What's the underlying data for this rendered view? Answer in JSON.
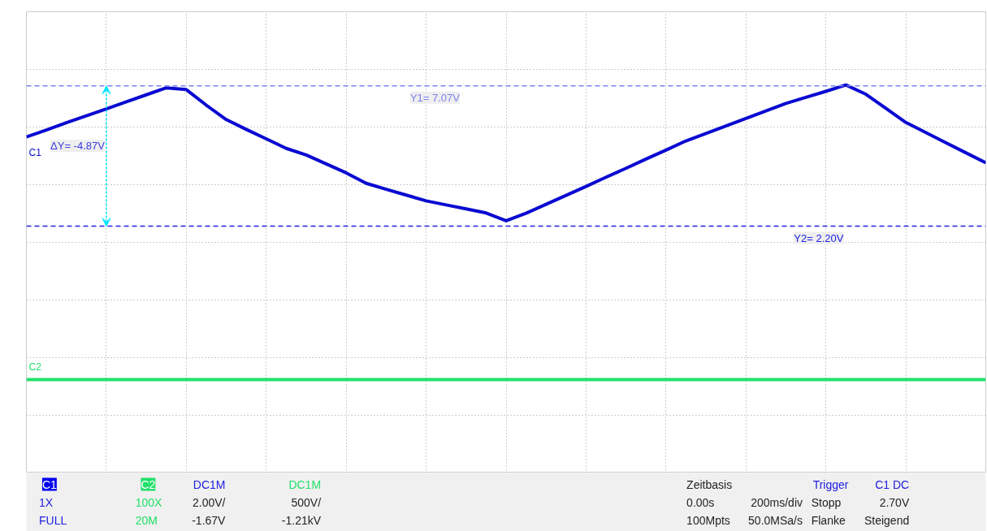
{
  "chart_data": {
    "type": "line",
    "categories": [
      null,
      null,
      null,
      null,
      null,
      null,
      null,
      null,
      null,
      null,
      null,
      null,
      null,
      null,
      null,
      null,
      null,
      null,
      null,
      null,
      null,
      null,
      null,
      null,
      null,
      null,
      null,
      null,
      null,
      null,
      null,
      null,
      null,
      null,
      null,
      null,
      null,
      null,
      null,
      null,
      null,
      null,
      null,
      null,
      null,
      null,
      null,
      null,
      null
    ],
    "series": [
      {
        "name": "C1",
        "color": "#0a0ad2",
        "values": [
          5.3,
          5.54,
          5.79,
          6.03,
          6.27,
          6.52,
          6.76,
          7.0,
          6.94,
          6.4,
          5.9,
          5.56,
          5.23,
          4.9,
          4.67,
          4.36,
          4.05,
          3.69,
          3.48,
          3.28,
          3.08,
          2.94,
          2.8,
          2.66,
          2.39,
          2.65,
          2.96,
          3.27,
          3.58,
          3.9,
          4.21,
          4.53,
          4.84,
          5.16,
          5.42,
          5.68,
          5.94,
          6.2,
          6.46,
          6.67,
          6.88,
          7.1,
          6.78,
          6.29,
          5.8,
          5.45,
          5.1,
          4.75,
          4.4
        ]
      },
      {
        "name": "C2",
        "color": "#22e06a",
        "values": [
          -3.12,
          -3.12,
          -3.12,
          -3.12,
          -3.12,
          -3.12,
          -3.12,
          -3.12,
          -3.12,
          -3.12,
          -3.12,
          -3.12,
          -3.12,
          -3.12,
          -3.12,
          -3.12,
          -3.12,
          -3.12,
          -3.12,
          -3.12,
          -3.12,
          -3.12,
          -3.12,
          -3.12,
          -3.12,
          -3.12,
          -3.12,
          -3.12,
          -3.12,
          -3.12,
          -3.12,
          -3.12,
          -3.12,
          -3.12,
          -3.12,
          -3.12,
          -3.12,
          -3.12,
          -3.12,
          -3.12,
          -3.12,
          -3.12,
          -3.12,
          -3.12,
          -3.12,
          -3.12,
          -3.12,
          -3.12,
          -3.12
        ]
      }
    ],
    "ylim": [
      -6.36,
      9.64
    ],
    "yticks": [
      {
        "value": -6.36,
        "label": null
      },
      {
        "value": -4.36,
        "label": null
      },
      {
        "value": -2.36,
        "label": null
      },
      {
        "value": -0.36,
        "label": null
      },
      {
        "value": 1.64,
        "label": null
      },
      {
        "value": 3.64,
        "label": null
      },
      {
        "value": 5.64,
        "label": null
      },
      {
        "value": 7.64,
        "label": null
      },
      {
        "value": 9.64,
        "label": null
      }
    ],
    "tick_labels": false,
    "grid": true,
    "marker": "none",
    "line_style": "solid",
    "ref_lines": [
      {
        "axis": "y",
        "value": 7.07,
        "label": "Y1= 7.07V",
        "color": "#8080f0",
        "line_style": "dashed"
      },
      {
        "axis": "y",
        "value": 2.2,
        "label": "Y2= 2.20V",
        "color": "#2020e0",
        "line_style": "dashed"
      }
    ],
    "annotations": [
      "ΔY= -4.87V",
      "C1",
      "DC1M",
      "1X",
      "2.00V/",
      "FULL",
      "-1.67V",
      "C2",
      "DC1M",
      "100X",
      "500V/",
      "20M",
      "-1.21kV",
      "Zeitbasis",
      "0.00s",
      "200ms/div",
      "100Mpts",
      "50.0MSa/s",
      "Trigger",
      "C1 DC",
      "Stopp",
      "2.70V",
      "Flanke",
      "Steigend"
    ]
  }
}
